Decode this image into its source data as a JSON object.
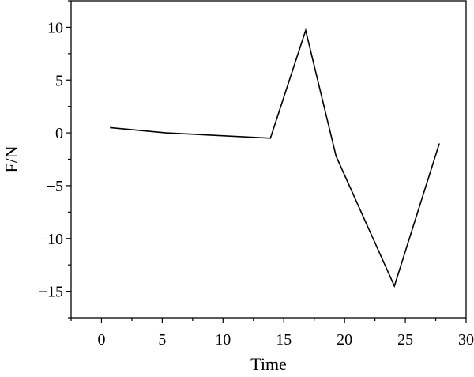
{
  "chart_data": {
    "type": "line",
    "title": "",
    "xlabel": "Time",
    "ylabel": "F/N",
    "xlim": [
      -2.5,
      30
    ],
    "ylim": [
      -17.5,
      12.5
    ],
    "xticks": [
      0,
      5,
      10,
      15,
      20,
      25,
      30
    ],
    "yticks": [
      10,
      5,
      0,
      -5,
      -10,
      -15
    ],
    "ytick_labels": [
      "10",
      "5",
      "0",
      "−5",
      "−10",
      "−15"
    ],
    "grid": false,
    "series": [
      {
        "x": [
          0.7,
          5.3,
          13.9,
          16.8,
          19.3,
          24.1,
          27.8
        ],
        "y": [
          0.5,
          0.0,
          -0.5,
          9.7,
          -2.2,
          -14.5,
          -1.0
        ],
        "color": "#000000"
      }
    ]
  }
}
